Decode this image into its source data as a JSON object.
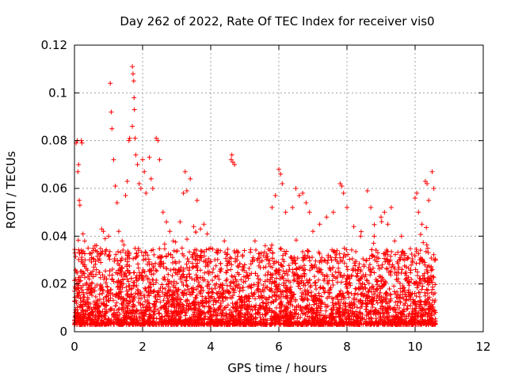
{
  "chart_data": {
    "type": "scatter",
    "title": "Day 262 of 2022, Rate Of TEC Index for receiver vis0",
    "xlabel": "GPS time / hours",
    "ylabel": "ROTI / TECUs",
    "xlim": [
      0,
      12
    ],
    "ylim": [
      0,
      0.12
    ],
    "x_ticks": [
      0,
      2,
      4,
      6,
      8,
      10,
      12
    ],
    "x_tick_labels": [
      "0",
      "2",
      "4",
      "6",
      "8",
      "10",
      "12"
    ],
    "y_ticks": [
      0,
      0.02,
      0.04,
      0.06,
      0.08,
      0.1,
      0.12
    ],
    "y_tick_labels": [
      "0",
      "0.02",
      "0.04",
      "0.06",
      "0.08",
      "0.1",
      "0.12"
    ],
    "grid": true,
    "marker": "+",
    "color": "#ff0000",
    "data_extent_hours": [
      0,
      10.6
    ],
    "series": [
      {
        "name": "ROTI",
        "points": [
          [
            0.02,
            0.008
          ],
          [
            0.05,
            0.079
          ],
          [
            0.08,
            0.08
          ],
          [
            0.1,
            0.067
          ],
          [
            0.12,
            0.07
          ],
          [
            0.14,
            0.055
          ],
          [
            0.16,
            0.053
          ],
          [
            0.2,
            0.08
          ],
          [
            0.22,
            0.079
          ],
          [
            0.25,
            0.041
          ],
          [
            0.3,
            0.038
          ],
          [
            0.4,
            0.035
          ],
          [
            0.5,
            0.031
          ],
          [
            0.6,
            0.036
          ],
          [
            0.7,
            0.03
          ],
          [
            0.8,
            0.043
          ],
          [
            0.85,
            0.042
          ],
          [
            0.9,
            0.039
          ],
          [
            1.0,
            0.04
          ],
          [
            1.05,
            0.104
          ],
          [
            1.08,
            0.092
          ],
          [
            1.1,
            0.085
          ],
          [
            1.15,
            0.072
          ],
          [
            1.2,
            0.061
          ],
          [
            1.25,
            0.054
          ],
          [
            1.3,
            0.042
          ],
          [
            1.4,
            0.038
          ],
          [
            1.5,
            0.057
          ],
          [
            1.55,
            0.063
          ],
          [
            1.6,
            0.08
          ],
          [
            1.62,
            0.081
          ],
          [
            1.7,
            0.111
          ],
          [
            1.72,
            0.108
          ],
          [
            1.74,
            0.105
          ],
          [
            1.75,
            0.098
          ],
          [
            1.76,
            0.093
          ],
          [
            1.7,
            0.086
          ],
          [
            1.78,
            0.081
          ],
          [
            1.8,
            0.074
          ],
          [
            1.85,
            0.07
          ],
          [
            1.9,
            0.062
          ],
          [
            1.95,
            0.06
          ],
          [
            2.0,
            0.072
          ],
          [
            2.05,
            0.067
          ],
          [
            2.1,
            0.058
          ],
          [
            2.2,
            0.073
          ],
          [
            2.25,
            0.064
          ],
          [
            2.3,
            0.06
          ],
          [
            2.4,
            0.081
          ],
          [
            2.45,
            0.08
          ],
          [
            2.5,
            0.072
          ],
          [
            2.6,
            0.05
          ],
          [
            2.7,
            0.046
          ],
          [
            2.8,
            0.042
          ],
          [
            2.9,
            0.038
          ],
          [
            3.1,
            0.046
          ],
          [
            3.2,
            0.058
          ],
          [
            3.25,
            0.067
          ],
          [
            3.3,
            0.059
          ],
          [
            3.4,
            0.064
          ],
          [
            3.5,
            0.044
          ],
          [
            3.6,
            0.055
          ],
          [
            3.7,
            0.043
          ],
          [
            3.8,
            0.045
          ],
          [
            3.9,
            0.041
          ],
          [
            4.0,
            0.035
          ],
          [
            4.2,
            0.033
          ],
          [
            4.4,
            0.038
          ],
          [
            4.6,
            0.072
          ],
          [
            4.62,
            0.074
          ],
          [
            4.65,
            0.071
          ],
          [
            4.7,
            0.07
          ],
          [
            4.8,
            0.033
          ],
          [
            5.0,
            0.028
          ],
          [
            5.3,
            0.038
          ],
          [
            5.6,
            0.036
          ],
          [
            5.8,
            0.052
          ],
          [
            5.9,
            0.057
          ],
          [
            6.0,
            0.068
          ],
          [
            6.05,
            0.066
          ],
          [
            6.1,
            0.062
          ],
          [
            6.2,
            0.05
          ],
          [
            6.4,
            0.052
          ],
          [
            6.5,
            0.06
          ],
          [
            6.6,
            0.057
          ],
          [
            6.7,
            0.058
          ],
          [
            6.8,
            0.054
          ],
          [
            6.9,
            0.05
          ],
          [
            7.0,
            0.042
          ],
          [
            7.2,
            0.045
          ],
          [
            7.4,
            0.048
          ],
          [
            7.6,
            0.05
          ],
          [
            7.8,
            0.062
          ],
          [
            7.85,
            0.061
          ],
          [
            7.9,
            0.058
          ],
          [
            8.0,
            0.052
          ],
          [
            8.2,
            0.044
          ],
          [
            8.4,
            0.04
          ],
          [
            8.6,
            0.059
          ],
          [
            8.7,
            0.052
          ],
          [
            8.8,
            0.04
          ],
          [
            9.0,
            0.048
          ],
          [
            9.1,
            0.05
          ],
          [
            9.2,
            0.045
          ],
          [
            9.3,
            0.052
          ],
          [
            9.4,
            0.038
          ],
          [
            9.6,
            0.04
          ],
          [
            9.8,
            0.031
          ],
          [
            10.0,
            0.056
          ],
          [
            10.05,
            0.058
          ],
          [
            10.1,
            0.05
          ],
          [
            10.2,
            0.045
          ],
          [
            10.3,
            0.063
          ],
          [
            10.35,
            0.062
          ],
          [
            10.4,
            0.055
          ],
          [
            10.5,
            0.067
          ],
          [
            10.55,
            0.06
          ],
          [
            10.6,
            0.03
          ]
        ]
      }
    ],
    "dense_band": {
      "description": "dense cloud of points spanning 0 to 10.6 hours",
      "typical_floor": 0.003,
      "typical_ceiling": 0.035
    }
  }
}
